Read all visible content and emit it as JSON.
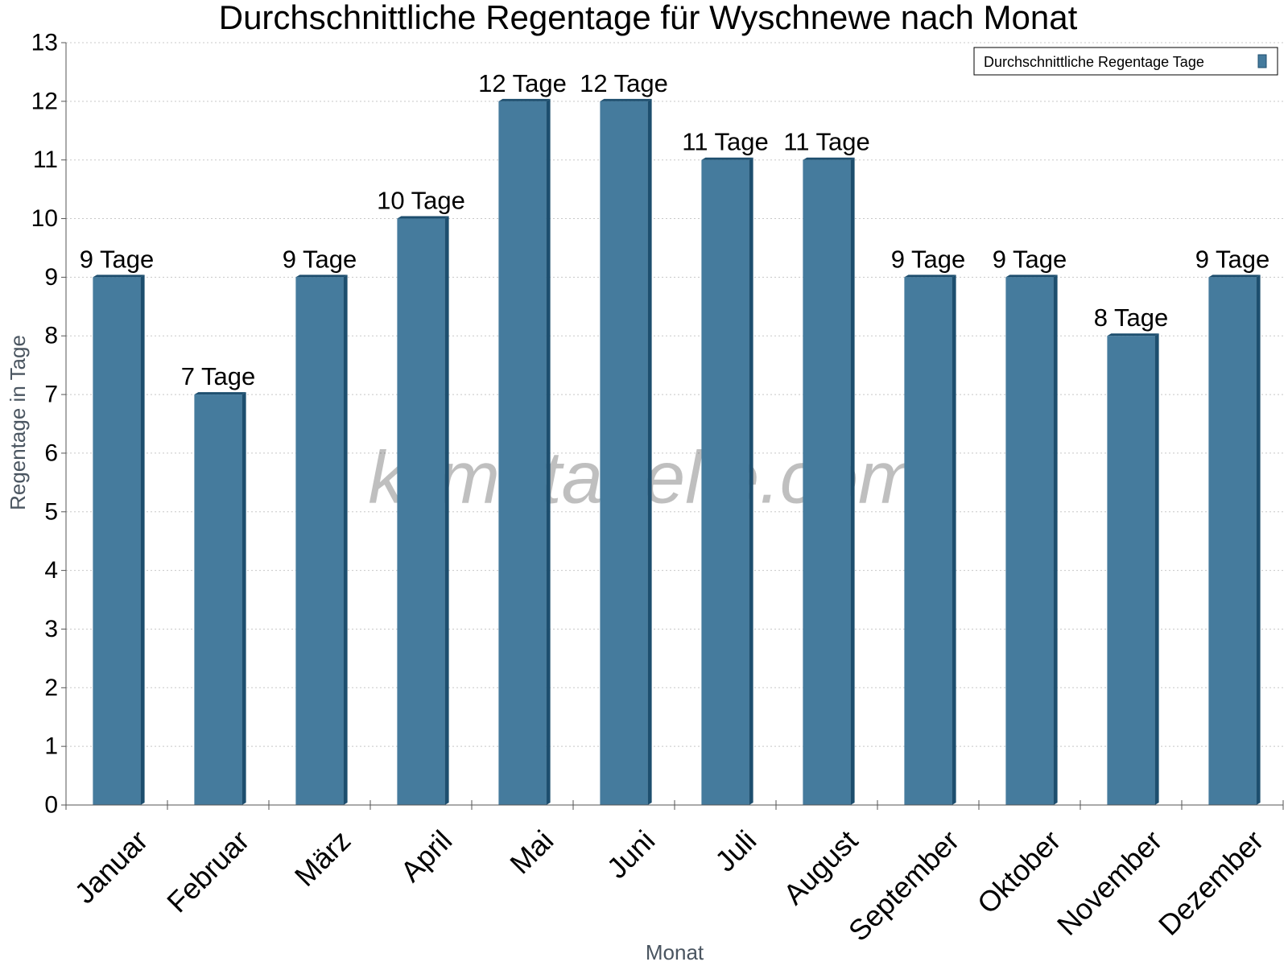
{
  "chart_data": {
    "type": "bar",
    "title": "Durchschnittliche Regentage für Wyschnewe nach Monat",
    "xlabel": "Monat",
    "ylabel": "Regentage in Tage",
    "categories": [
      "Januar",
      "Februar",
      "März",
      "April",
      "Mai",
      "Juni",
      "Juli",
      "August",
      "September",
      "Oktober",
      "November",
      "Dezember"
    ],
    "series": [
      {
        "name": "Durchschnittliche Regentage Tage",
        "values": [
          9,
          7,
          9,
          10,
          12,
          12,
          11,
          11,
          9,
          9,
          8,
          9
        ],
        "data_labels": [
          "9 Tage",
          "7 Tage",
          "9 Tage",
          "10 Tage",
          "12 Tage",
          "12 Tage",
          "11 Tage",
          "11 Tage",
          "9 Tage",
          "9 Tage",
          "8 Tage",
          "9 Tage"
        ]
      }
    ],
    "ylim": [
      0,
      13
    ],
    "yticks": [
      "0",
      "1",
      "2",
      "3",
      "4",
      "5",
      "6",
      "7",
      "8",
      "9",
      "10",
      "11",
      "12",
      "13"
    ],
    "grid": "horizontal dotted",
    "legend_position": "top-right",
    "watermark": "klimatabelle.com",
    "colors": {
      "bar_front": "#457b9d",
      "bar_side": "#1d4e6e",
      "grid": "#c8c8c8",
      "axis": "#555555"
    }
  }
}
